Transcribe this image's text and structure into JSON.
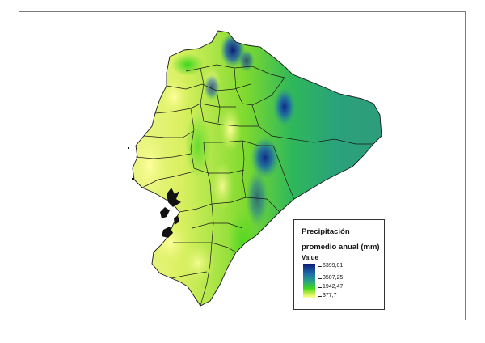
{
  "legend": {
    "title": "Precipitación",
    "subtitle": "promedio anual (mm)",
    "field": "Value",
    "ramp_colors": [
      "#0b1a78",
      "#1f6ea8",
      "#2aa383",
      "#3fd61e",
      "#c6ef4b",
      "#ffff9e"
    ],
    "breaks": [
      "6399,01",
      "3507,25",
      "1942,47",
      "377,7"
    ]
  },
  "map": {
    "region": "Ecuador (continental)",
    "palette": {
      "low": "#ffff9e",
      "mid_low": "#9ee82e",
      "mid": "#2ab55a",
      "mid_high": "#2a8aa0",
      "high": "#0b1a78"
    }
  }
}
